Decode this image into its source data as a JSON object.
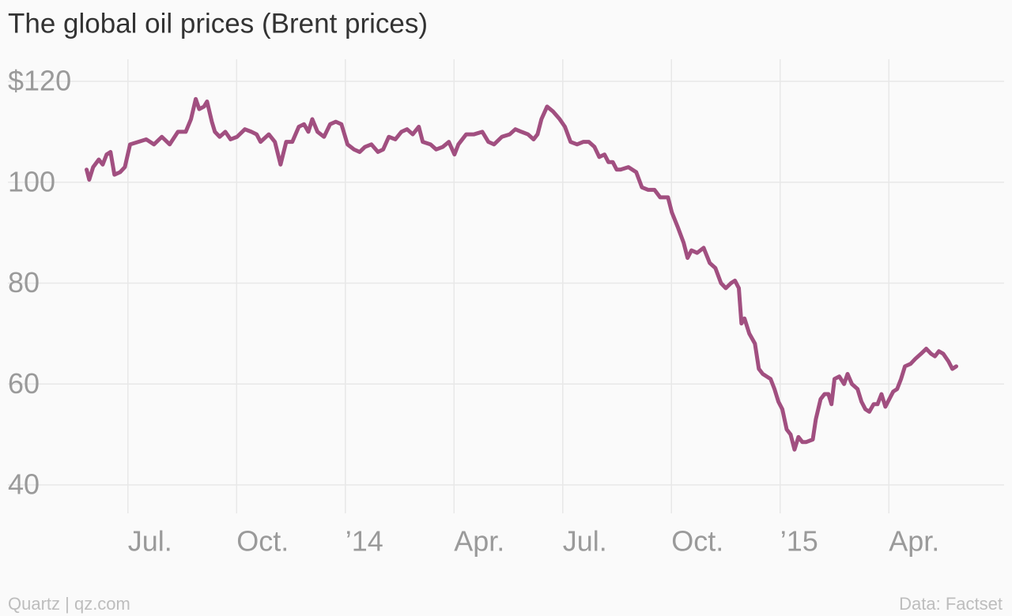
{
  "chart_data": {
    "type": "line",
    "title": "The global oil prices (Brent prices)",
    "source": "Quartz | qz.com",
    "credit": "Data: Factset",
    "color": "#a14f80",
    "grid": true,
    "xlim": [
      2013.224,
      2015.515
    ],
    "xticks": [
      {
        "value": 2013.5,
        "label": "Jul."
      },
      {
        "value": 2013.75,
        "label": "Oct."
      },
      {
        "value": 2014,
        "label": "’14"
      },
      {
        "value": 2014.25,
        "label": "Apr."
      },
      {
        "value": 2014.5,
        "label": "Jul."
      },
      {
        "value": 2014.75,
        "label": "Oct."
      },
      {
        "value": 2015,
        "label": "’15"
      },
      {
        "value": 2015.25,
        "label": "Apr."
      }
    ],
    "ylim": [
      40,
      120
    ],
    "yticks": [
      {
        "value": 120,
        "label": "$120"
      },
      100,
      80,
      60,
      40
    ],
    "x": [
      2013.405,
      2013.411,
      2013.42,
      2013.433,
      2013.442,
      2013.451,
      2013.46,
      2013.469,
      2013.482,
      2013.493,
      2013.505,
      2013.524,
      2013.542,
      2013.56,
      2013.578,
      2013.596,
      2013.615,
      2013.633,
      2013.645,
      2013.656,
      2013.664,
      2013.675,
      2013.682,
      2013.693,
      2013.7,
      2013.711,
      2013.724,
      2013.736,
      2013.751,
      2013.769,
      2013.784,
      2013.796,
      2013.805,
      2013.824,
      2013.838,
      2013.851,
      2013.864,
      2013.878,
      2013.893,
      2013.905,
      2013.915,
      2013.924,
      2013.936,
      2013.951,
      2013.965,
      2013.978,
      2013.991,
      2014.005,
      2014.02,
      2014.033,
      2014.045,
      2014.06,
      2014.075,
      2014.087,
      2014.1,
      2014.115,
      2014.129,
      2014.142,
      2014.155,
      2014.169,
      2014.178,
      2014.196,
      2014.209,
      2014.224,
      2014.238,
      2014.251,
      2014.26,
      2014.278,
      2014.296,
      2014.315,
      2014.329,
      2014.342,
      2014.36,
      2014.378,
      2014.391,
      2014.405,
      2014.42,
      2014.433,
      2014.442,
      2014.451,
      2014.464,
      2014.478,
      2014.493,
      2014.505,
      2014.518,
      2014.533,
      2014.547,
      2014.56,
      2014.573,
      2014.584,
      2014.596,
      2014.605,
      2014.615,
      2014.624,
      2014.633,
      2014.651,
      2014.669,
      2014.682,
      2014.696,
      2014.711,
      2014.724,
      2014.742,
      2014.751,
      2014.765,
      2014.778,
      2014.787,
      2014.796,
      2014.809,
      2014.824,
      2014.838,
      2014.851,
      2014.864,
      2014.875,
      2014.887,
      2014.896,
      2014.905,
      2014.911,
      2014.918,
      2014.929,
      2014.942,
      2014.951,
      2014.96,
      2014.969,
      2014.978,
      2014.987,
      2014.996,
      2015.005,
      2015.015,
      2015.024,
      2015.033,
      2015.042,
      2015.051,
      2015.06,
      2015.075,
      2015.082,
      2015.093,
      2015.102,
      2015.111,
      2015.118,
      2015.125,
      2015.136,
      2015.147,
      2015.155,
      2015.165,
      2015.178,
      2015.187,
      2015.196,
      2015.205,
      2015.215,
      2015.224,
      2015.233,
      2015.242,
      2015.251,
      2015.26,
      2015.269,
      2015.278,
      2015.287,
      2015.3,
      2015.311,
      2015.324,
      2015.336,
      2015.347,
      2015.356,
      2015.365,
      2015.375,
      2015.387,
      2015.396,
      2015.405
    ],
    "values": [
      102.5,
      100.5,
      103,
      104.5,
      103.5,
      105.5,
      106,
      101.5,
      102,
      103,
      107.5,
      108,
      108.5,
      107.5,
      109,
      107.5,
      110,
      110,
      112.5,
      116.5,
      114.5,
      115,
      116,
      112,
      110,
      109,
      110,
      108.5,
      109,
      110.5,
      110,
      109.5,
      108,
      109.5,
      108,
      103.5,
      108,
      108,
      111,
      111.5,
      110,
      112.5,
      110,
      109,
      111.5,
      112,
      111.5,
      107.5,
      106.5,
      106,
      107,
      107.5,
      106,
      106.5,
      109,
      108.5,
      110,
      110.5,
      109.5,
      111,
      108,
      107.5,
      106.5,
      107,
      108,
      105.5,
      107.5,
      109.5,
      109.5,
      110,
      108,
      107.5,
      109,
      109.5,
      110.5,
      110,
      109.5,
      108.5,
      109.5,
      112.5,
      115,
      114,
      112.5,
      111,
      108,
      107.5,
      108,
      108,
      107,
      105,
      105.5,
      104,
      104,
      102.5,
      102.5,
      103,
      102,
      99,
      98.5,
      98.5,
      97,
      97,
      94,
      91,
      88,
      85,
      86.5,
      86,
      87,
      84,
      83,
      80,
      79,
      80,
      80.5,
      79,
      72,
      73,
      70,
      68,
      63,
      62,
      61.5,
      61,
      59,
      56.5,
      55,
      51,
      50,
      47,
      49.5,
      48.5,
      48.5,
      49,
      53,
      57,
      58,
      58,
      56,
      61,
      61.5,
      60,
      62,
      60,
      59,
      56.5,
      55,
      54.5,
      56,
      56,
      58,
      55.5,
      57,
      58.5,
      59,
      61,
      63.5,
      64,
      65,
      66,
      67,
      66,
      65.5,
      66.5,
      66,
      64.5,
      63,
      63.5
    ]
  }
}
